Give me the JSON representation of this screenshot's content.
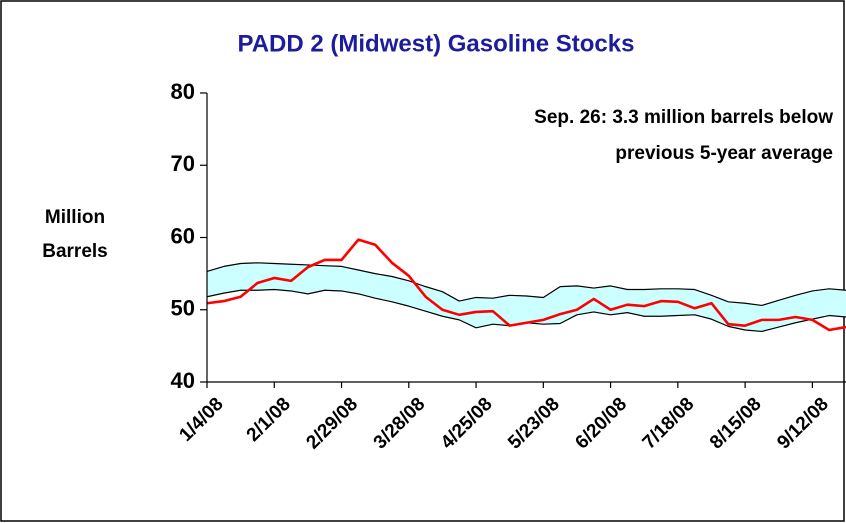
{
  "chart_data": {
    "type": "line",
    "title": "PADD 2 (Midwest) Gasoline Stocks",
    "y_label": [
      "Million",
      "Barrels"
    ],
    "annotation": [
      "Sep. 26:  3.3 million barrels below",
      "previous 5-year average"
    ],
    "categories": [
      "1/4/08",
      null,
      null,
      null,
      "2/1/08",
      null,
      null,
      null,
      "2/29/08",
      null,
      null,
      null,
      "3/28/08",
      null,
      null,
      null,
      "4/25/08",
      null,
      null,
      null,
      "5/23/08",
      null,
      null,
      null,
      "6/20/08",
      null,
      null,
      null,
      "7/18/08",
      null,
      null,
      null,
      "8/15/08",
      null,
      null,
      null,
      "9/12/08",
      null,
      null
    ],
    "ylim": [
      40,
      80
    ],
    "yticks": [
      40,
      50,
      60,
      70,
      80
    ],
    "band_fill": "#ccffff",
    "series": [
      {
        "color": "#000000",
        "values": [
          55.3,
          56.0,
          56.4,
          56.5,
          56.4,
          56.3,
          56.2,
          56.1,
          56.0,
          55.5,
          55.0,
          54.6,
          54.0,
          53.2,
          52.5,
          51.2,
          51.7,
          51.6,
          52.0,
          51.9,
          51.7,
          53.2,
          53.3,
          53.0,
          53.3,
          52.8,
          52.8,
          52.9,
          52.9,
          52.8,
          52.0,
          51.1,
          50.9,
          50.6,
          51.3,
          52.0,
          52.6,
          52.9,
          52.7
        ]
      },
      {
        "color": "#000000",
        "values": [
          51.8,
          52.3,
          52.7,
          52.7,
          52.8,
          52.6,
          52.2,
          52.7,
          52.6,
          52.2,
          51.6,
          51.1,
          50.5,
          49.8,
          49.1,
          48.6,
          47.5,
          48.0,
          47.8,
          48.2,
          48.0,
          48.1,
          49.3,
          49.7,
          49.3,
          49.6,
          49.1,
          49.1,
          49.2,
          49.3,
          48.7,
          47.7,
          47.2,
          47.0,
          47.6,
          48.2,
          48.7,
          49.2,
          49.0
        ]
      },
      {
        "color": "#ff0000",
        "values": [
          50.9,
          51.2,
          51.8,
          53.7,
          54.4,
          54.0,
          55.9,
          56.9,
          56.9,
          59.7,
          59.0,
          56.5,
          54.7,
          51.8,
          50.0,
          49.3,
          49.7,
          49.8,
          47.8,
          48.2,
          48.6,
          49.4,
          50.0,
          51.5,
          50.0,
          50.7,
          50.5,
          51.2,
          51.1,
          50.2,
          50.9,
          48.0,
          47.8,
          48.6,
          48.6,
          49.0,
          48.6,
          47.2,
          47.6
        ]
      }
    ]
  }
}
